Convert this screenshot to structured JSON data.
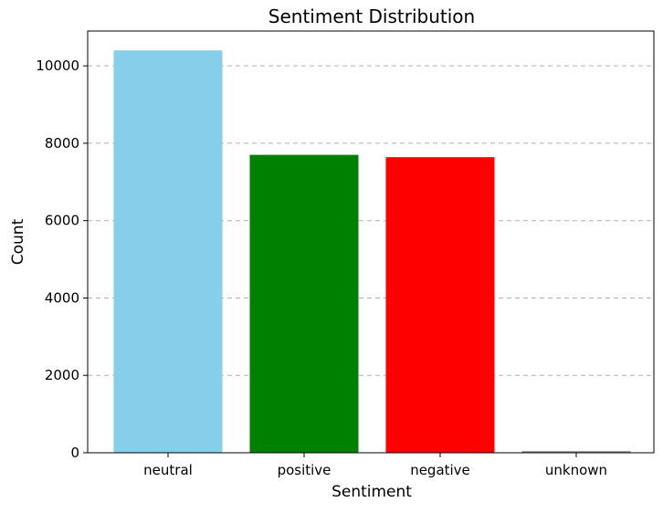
{
  "chart_data": {
    "type": "bar",
    "title": "Sentiment Distribution",
    "xlabel": "Sentiment",
    "ylabel": "Count",
    "categories": [
      "neutral",
      "positive",
      "negative",
      "unknown"
    ],
    "values": [
      10400,
      7700,
      7640,
      40
    ],
    "colors": [
      "#87CEEB",
      "#008000",
      "#FF0000",
      "#808080"
    ],
    "ylim": [
      0,
      10900
    ],
    "yticks": [
      0,
      2000,
      4000,
      6000,
      8000,
      10000
    ],
    "ytick_labels": [
      "0",
      "2000",
      "4000",
      "6000",
      "8000",
      "10000"
    ],
    "grid": "y-dashed"
  }
}
